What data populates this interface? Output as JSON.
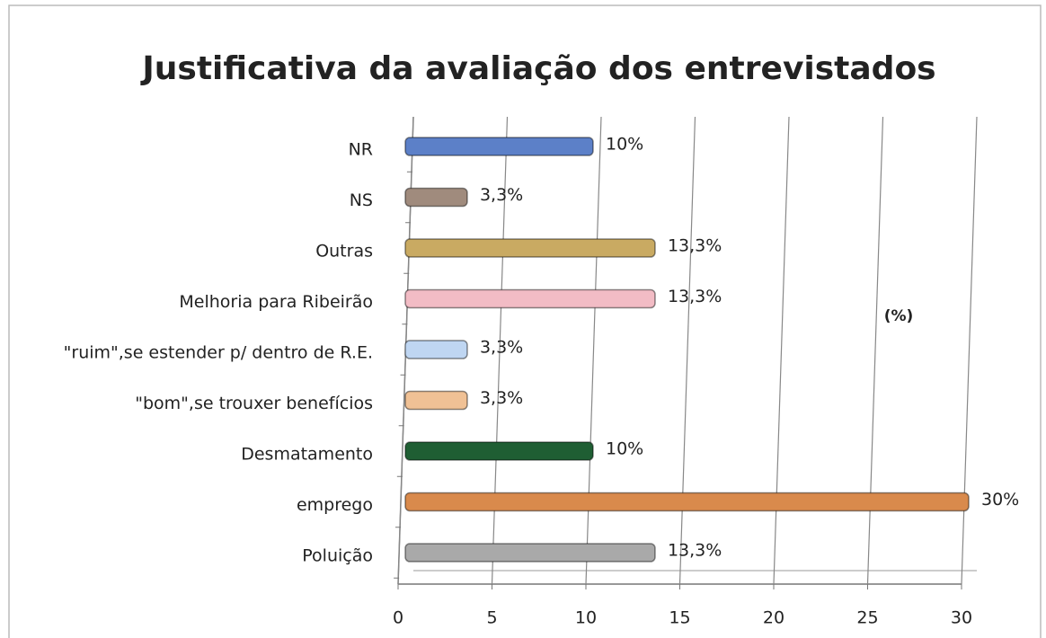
{
  "chart_data": {
    "type": "hbar",
    "title": "Justificativa da avaliação dos entrevistados",
    "annotation": "(%)",
    "categories": [
      "Poluição",
      "emprego",
      "Desmatamento",
      "\"bom\",se trouxer benefícios",
      "\"ruim\",se estender p/ dentro de R.E.",
      "Melhoria para Ribeirão",
      "Outras",
      "NS",
      "NR"
    ],
    "values": [
      13.3,
      30,
      10,
      3.3,
      3.3,
      13.3,
      13.3,
      3.3,
      10
    ],
    "value_labels": [
      "13,3%",
      "30%",
      "10%",
      "3,3%",
      "3,3%",
      "13,3%",
      "13,3%",
      "3,3%",
      "10%"
    ],
    "colors": [
      "#a9a9a9",
      "#d98a4c",
      "#1f5e33",
      "#f0c195",
      "#bfd6f2",
      "#f2bcc5",
      "#c9aa62",
      "#a08b7d",
      "#5c80c8"
    ],
    "xlim": [
      0,
      30
    ],
    "xticks": [
      0,
      5,
      10,
      15,
      20,
      25,
      30
    ],
    "grid": true
  }
}
